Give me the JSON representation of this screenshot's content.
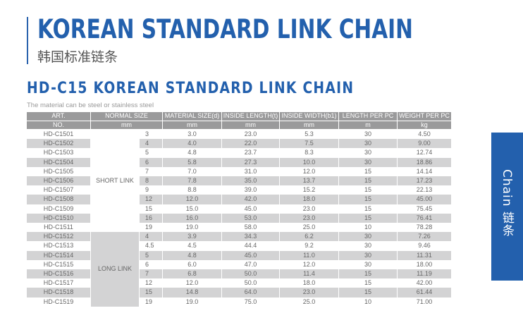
{
  "header": {
    "title": "KOREAN STANDARD LINK CHAIN",
    "title_cn": "韩国标准链条"
  },
  "section": {
    "title": "HD-C15 KOREAN STANDARD LINK CHAIN",
    "note": "The material can be steel or stainless steel"
  },
  "table": {
    "headers": [
      "ART.",
      "NORMAL SIZE",
      "MATERIAL SIZE(d)",
      "INSIDE LENGTH(t)",
      "INSIDE WIDTH(b1)",
      "LENGTH PER PC",
      "WEIGHT PER PC"
    ],
    "units": [
      "NO.",
      "mm",
      "mm",
      "mm",
      "mm",
      "m",
      "kg"
    ],
    "groups": [
      "SHORT LINK",
      "LONG LINK"
    ],
    "rows": [
      [
        "HD-C1501",
        "3",
        "3.0",
        "23.0",
        "5.3",
        "30",
        "4.50"
      ],
      [
        "HD-C1502",
        "4",
        "4.0",
        "22.0",
        "7.5",
        "30",
        "9.00"
      ],
      [
        "HD-C1503",
        "5",
        "4.8",
        "23.7",
        "8.3",
        "30",
        "12.74"
      ],
      [
        "HD-C1504",
        "6",
        "5.8",
        "27.3",
        "10.0",
        "30",
        "18.86"
      ],
      [
        "HD-C1505",
        "7",
        "7.0",
        "31.0",
        "12.0",
        "15",
        "14.14"
      ],
      [
        "HD-C1506",
        "8",
        "7.8",
        "35.0",
        "13.7",
        "15",
        "17.23"
      ],
      [
        "HD-C1507",
        "9",
        "8.8",
        "39.0",
        "15.2",
        "15",
        "22.13"
      ],
      [
        "HD-C1508",
        "12",
        "12.0",
        "42.0",
        "18.0",
        "15",
        "45.00"
      ],
      [
        "HD-C1509",
        "15",
        "15.0",
        "45.0",
        "23.0",
        "15",
        "75.45"
      ],
      [
        "HD-C1510",
        "16",
        "16.0",
        "53.0",
        "23.0",
        "15",
        "76.41"
      ],
      [
        "HD-C1511",
        "19",
        "19.0",
        "58.0",
        "25.0",
        "10",
        "78.28"
      ],
      [
        "HD-C1512",
        "4",
        "3.9",
        "34.3",
        "6.2",
        "30",
        "7.26"
      ],
      [
        "HD-C1513",
        "4.5",
        "4.5",
        "44.4",
        "9.2",
        "30",
        "9.46"
      ],
      [
        "HD-C1514",
        "5",
        "4.8",
        "45.0",
        "11.0",
        "30",
        "11.31"
      ],
      [
        "HD-C1515",
        "6",
        "6.0",
        "47.0",
        "12.0",
        "30",
        "18.00"
      ],
      [
        "HD-C1516",
        "7",
        "6.8",
        "50.0",
        "11.4",
        "15",
        "11.19"
      ],
      [
        "HD-C1517",
        "12",
        "12.0",
        "50.0",
        "18.0",
        "15",
        "42.00"
      ],
      [
        "HD-C1518",
        "15",
        "14.8",
        "64.0",
        "23.0",
        "15",
        "61.44"
      ],
      [
        "HD-C1519",
        "19",
        "19.0",
        "75.0",
        "25.0",
        "10",
        "71.00"
      ]
    ]
  },
  "side_tab": {
    "label": "Chain 链条"
  },
  "colors": {
    "brand": "#2360ad",
    "header": "#9a9a9b",
    "stripe": "#d3d3d4"
  }
}
